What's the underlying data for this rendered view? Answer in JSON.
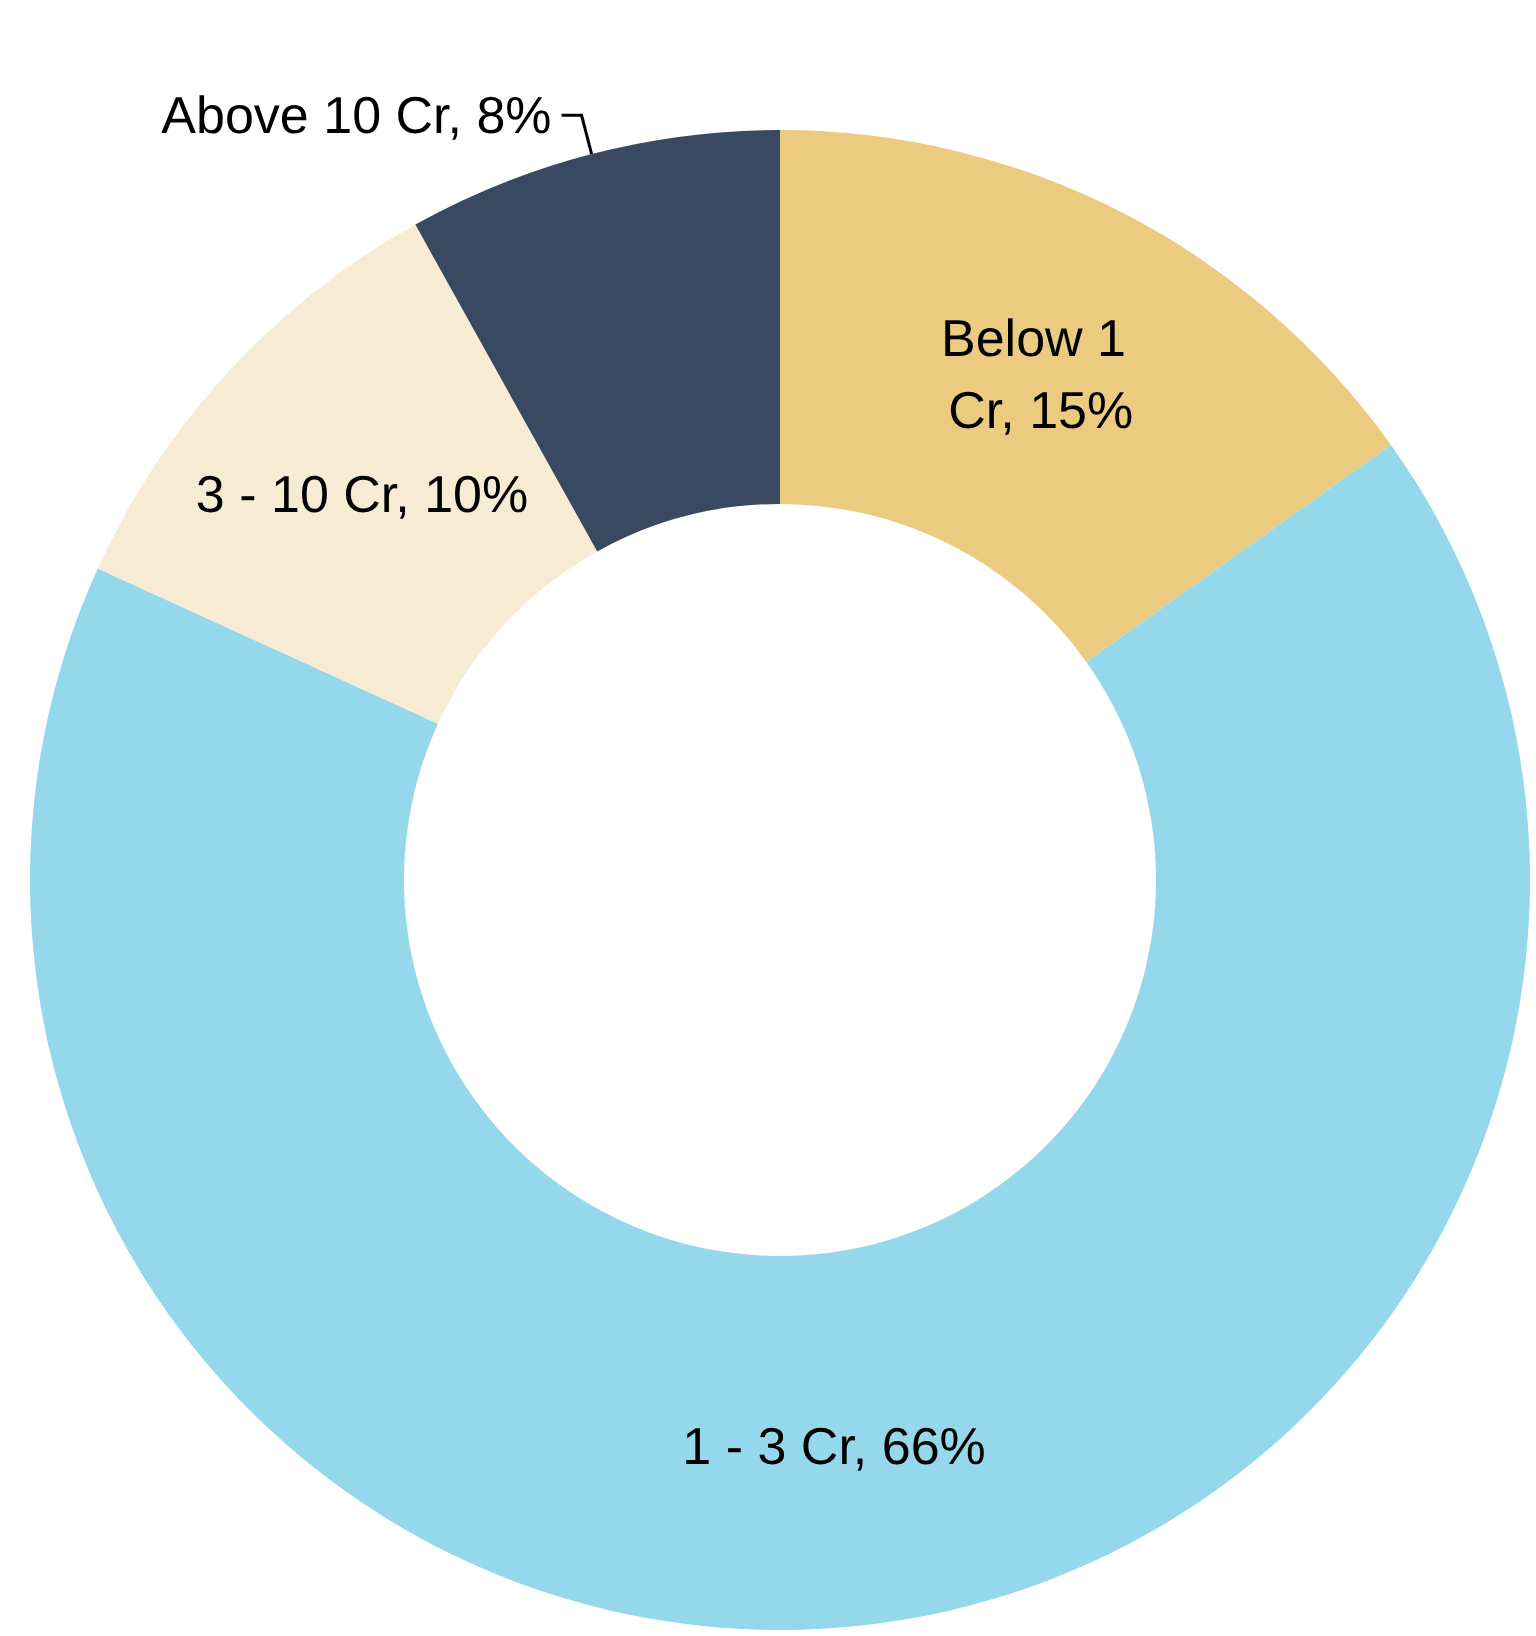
{
  "chart_data": {
    "type": "donut",
    "categories": [
      "Below 1 Cr",
      "1 - 3 Cr",
      "3 - 10 Cr",
      "Above 10 Cr"
    ],
    "values": [
      15,
      66,
      10,
      8
    ],
    "value_labels": [
      "15%",
      "66%",
      "10%",
      "8%"
    ],
    "colors": [
      "#ebcb80",
      "#95d8ec",
      "#f8ebd4",
      "#394962"
    ],
    "legend": false
  }
}
